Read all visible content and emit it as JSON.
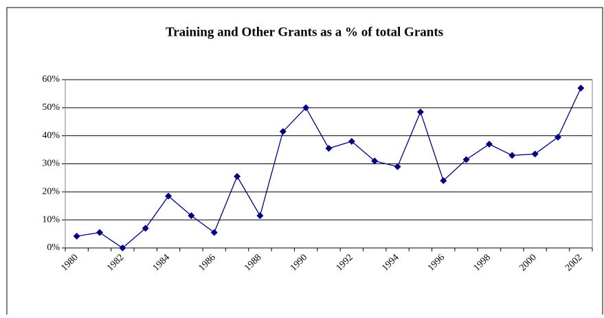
{
  "chart_data": {
    "type": "line",
    "title": "Training and Other Grants as a % of total Grants",
    "categories": [
      "1980",
      null,
      "1982",
      null,
      "1984",
      null,
      "1986",
      null,
      "1988",
      null,
      "1990",
      null,
      "1992",
      null,
      "1994",
      null,
      "1996",
      null,
      "1998",
      null,
      "2000",
      null,
      "2002"
    ],
    "series": [
      {
        "name": "Training and Other Grants",
        "color": "#000080",
        "values": [
          4.2,
          5.5,
          0,
          7,
          18.5,
          11.5,
          5.5,
          25.5,
          11.5,
          41.5,
          50,
          35.5,
          38,
          31,
          29,
          48.5,
          24,
          31.5,
          37,
          33,
          33.5,
          39.5,
          57
        ]
      }
    ],
    "ylim": [
      0,
      60
    ],
    "yticks": [
      {
        "value": 0,
        "label": "0%"
      },
      {
        "value": 10,
        "label": "10%"
      },
      {
        "value": 20,
        "label": "20%"
      },
      {
        "value": 30,
        "label": "30%"
      },
      {
        "value": 40,
        "label": "40%"
      },
      {
        "value": 50,
        "label": "50%"
      },
      {
        "value": 60,
        "label": "60%"
      }
    ],
    "grid": true
  }
}
